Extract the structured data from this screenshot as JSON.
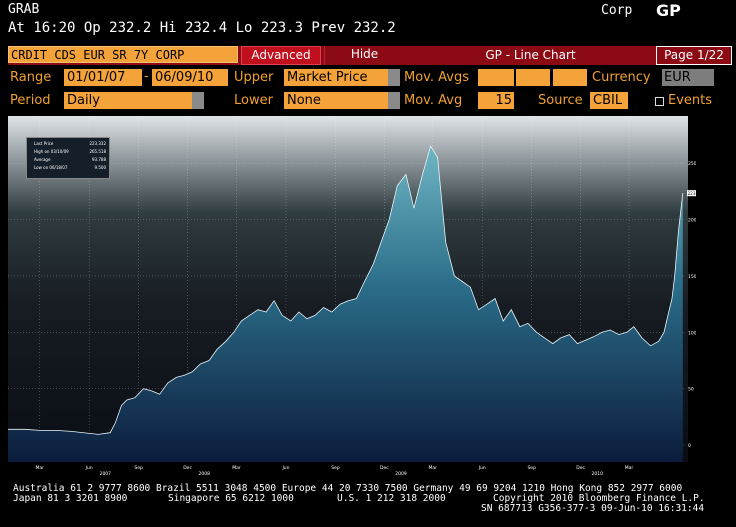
{
  "header": {
    "ticker": "GRAB",
    "market": "Corp",
    "brand": "GP",
    "quote_line": "At 16:20 Op 232.2  Hi 232.4  Lo 223.3  Prev 232.2"
  },
  "toolbar": {
    "security": "CRDIT CDS EUR SR 7Y CORP",
    "advanced_label": "Advanced",
    "hide_label": "Hide",
    "title": "GP - Line Chart",
    "page": "Page 1/22"
  },
  "params": {
    "range_label": "Range",
    "range_start": "01/01/07",
    "range_sep": "-",
    "range_end": "06/09/10",
    "upper_label": "Upper",
    "upper_value": "Market Price",
    "mov_avgs_label": "Mov. Avgs",
    "currency_label": "Currency",
    "currency_value": "EUR",
    "period_label": "Period",
    "period_value": "Daily",
    "lower_label": "Lower",
    "lower_value": "None",
    "mov_avg_label": "Mov. Avg",
    "mov_avg_value": "15",
    "source_label": "Source",
    "source_value": "CBIL",
    "events_label": "Events"
  },
  "legend": {
    "rows": [
      {
        "label": "Last Price",
        "value": "223.332"
      },
      {
        "label": "High on 03/10/09",
        "value": "265.518"
      },
      {
        "label": "Average",
        "value": "93.788"
      },
      {
        "label": "Low on 06/18/07",
        "value": "9.500"
      }
    ]
  },
  "chart_data": {
    "type": "area",
    "series": [
      {
        "name": "Last Price",
        "x": [
          "2007-01-01",
          "2007-02-01",
          "2007-03-01",
          "2007-04-01",
          "2007-05-01",
          "2007-06-18",
          "2007-07-10",
          "2007-07-20",
          "2007-07-31",
          "2007-08-10",
          "2007-08-25",
          "2007-09-10",
          "2007-09-25",
          "2007-10-10",
          "2007-10-25",
          "2007-11-10",
          "2007-11-25",
          "2007-12-10",
          "2007-12-25",
          "2008-01-10",
          "2008-01-25",
          "2008-02-10",
          "2008-02-25",
          "2008-03-10",
          "2008-03-25",
          "2008-04-10",
          "2008-04-25",
          "2008-05-10",
          "2008-05-25",
          "2008-06-10",
          "2008-06-25",
          "2008-07-10",
          "2008-07-25",
          "2008-08-10",
          "2008-08-25",
          "2008-09-10",
          "2008-09-25",
          "2008-10-10",
          "2008-10-25",
          "2008-11-10",
          "2008-11-25",
          "2008-12-10",
          "2008-12-25",
          "2009-01-10",
          "2009-01-25",
          "2009-02-10",
          "2009-02-25",
          "2009-03-10",
          "2009-03-25",
          "2009-04-10",
          "2009-04-25",
          "2009-05-10",
          "2009-05-25",
          "2009-06-10",
          "2009-06-25",
          "2009-07-10",
          "2009-07-25",
          "2009-08-10",
          "2009-08-25",
          "2009-09-10",
          "2009-09-25",
          "2009-10-10",
          "2009-10-25",
          "2009-11-10",
          "2009-11-25",
          "2009-12-10",
          "2009-12-25",
          "2010-01-10",
          "2010-01-25",
          "2010-02-10",
          "2010-02-25",
          "2010-03-10",
          "2010-03-25",
          "2010-04-10",
          "2010-04-25",
          "2010-05-05",
          "2010-05-10",
          "2010-05-20",
          "2010-05-25",
          "2010-06-01",
          "2010-06-09"
        ],
        "values": [
          14,
          14,
          13,
          13,
          12,
          9.5,
          11,
          20,
          35,
          40,
          42,
          50,
          48,
          45,
          55,
          60,
          62,
          65,
          72,
          75,
          85,
          92,
          100,
          110,
          115,
          120,
          118,
          128,
          115,
          110,
          118,
          112,
          115,
          122,
          118,
          125,
          128,
          130,
          145,
          160,
          180,
          200,
          230,
          240,
          210,
          240,
          265,
          255,
          180,
          150,
          145,
          140,
          120,
          125,
          130,
          110,
          120,
          105,
          108,
          100,
          95,
          90,
          95,
          98,
          90,
          93,
          96,
          100,
          102,
          98,
          100,
          105,
          95,
          88,
          92,
          100,
          110,
          130,
          150,
          190,
          223.332
        ]
      }
    ],
    "x_tick_labels": [
      "Mar",
      "Jun",
      "Sep",
      "Dec",
      "Mar",
      "Jun",
      "Sep",
      "Dec",
      "Mar",
      "Jun",
      "Sep",
      "Dec",
      "Mar"
    ],
    "year_labels": [
      "2007",
      "2008",
      "2009",
      "2010"
    ],
    "y_ticks": [
      0,
      50,
      100,
      150,
      200,
      250
    ],
    "ylim": [
      -15,
      290
    ],
    "last_value_label": "223.332",
    "grid": true,
    "legend_position": "top-left"
  },
  "footer": {
    "line1": "Australia 61 2 9777 8600 Brazil 5511 3048 4500 Europe 44 20 7330 7500 Germany 49 69 9204 1210 Hong Kong 852 2977 6000",
    "line2_left": "Japan 81 3 3201 8900",
    "line2_mid": "Singapore 65 6212 1000",
    "line2_us": "U.S. 1 212 318 2000",
    "line2_right": "Copyright 2010 Bloomberg Finance L.P.",
    "line3": "SN 687713 G356-377-3 09-Jun-10 16:31:44"
  },
  "colors": {
    "orange": "#f4a23a",
    "label_orange": "#f0a030",
    "bar_red": "#8b0a14",
    "fill_top": "#5fa8b8",
    "fill_bottom": "#0e2244"
  }
}
